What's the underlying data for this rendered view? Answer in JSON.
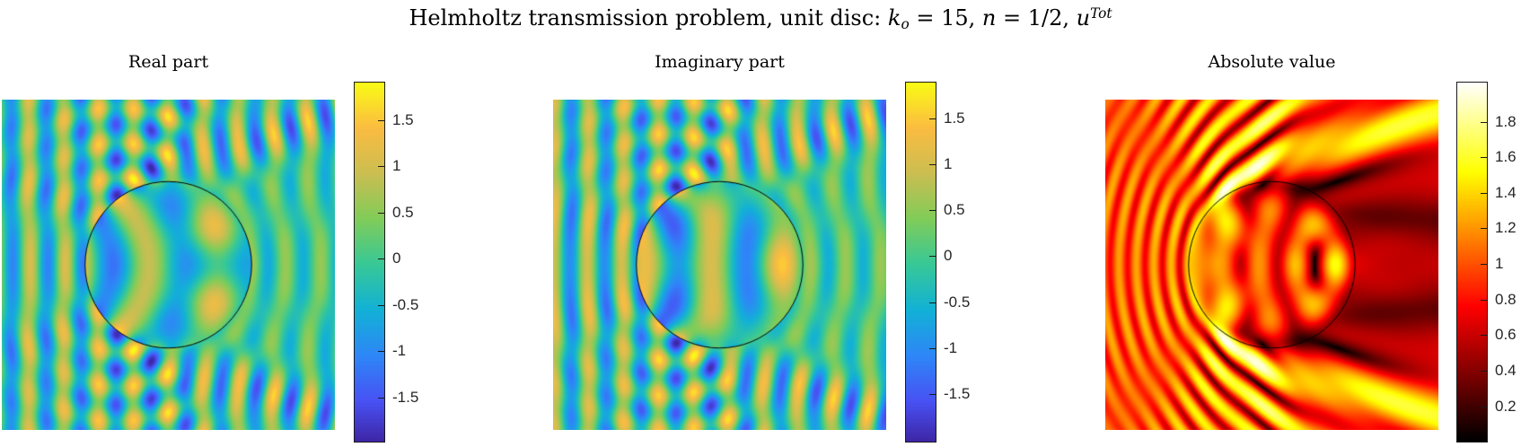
{
  "header": {
    "text1": "Helmholtz transmission problem, unit disc: ",
    "k": "k",
    "k_sub": "o",
    "mid1": " = 15, ",
    "n_sym": "n",
    "mid2": " = 1/2, ",
    "u_sym": "u",
    "u_sup": "Tot"
  },
  "model": {
    "k_outer": 15,
    "refractive_index": 0.5,
    "disc_radius": 1,
    "domain": [
      -2,
      2
    ],
    "incident_wave": "plane wave exp(i*k*x) traveling left to right"
  },
  "panels": [
    {
      "id": "real",
      "title": "Real part",
      "quantity": "Re(u^Tot)",
      "colormap": "parula",
      "colorbar_ticks": [
        1.5,
        1,
        0.5,
        0,
        -0.5,
        -1,
        -1.5
      ]
    },
    {
      "id": "imag",
      "title": "Imaginary part",
      "quantity": "Im(u^Tot)",
      "colormap": "parula",
      "colorbar_ticks": [
        1.5,
        1,
        0.5,
        0,
        -0.5,
        -1,
        -1.5
      ]
    },
    {
      "id": "abs",
      "title": "Absolute value",
      "quantity": "|u^Tot|",
      "colormap": "hot",
      "colorbar_ticks": [
        1.8,
        1.6,
        1.4,
        1.2,
        1,
        0.8,
        0.6,
        0.4,
        0.2
      ]
    }
  ],
  "colors": {
    "background": "#ffffff",
    "title_text": "#000000",
    "tick_text": "#262626",
    "colorbar_box": "#1a1a1a",
    "circle_outline": "#000000",
    "parula_stops": [
      [
        0,
        "#3E26A8"
      ],
      [
        0.111,
        "#4852F4"
      ],
      [
        0.238,
        "#2E87F7"
      ],
      [
        0.365,
        "#12B1D6"
      ],
      [
        0.492,
        "#37C897"
      ],
      [
        0.619,
        "#81CC59"
      ],
      [
        0.746,
        "#CBBE51"
      ],
      [
        0.873,
        "#FBBC41"
      ],
      [
        1,
        "#F9FB15"
      ]
    ],
    "hot_stops": [
      [
        0,
        "#000000"
      ],
      [
        0.375,
        "#FF0000"
      ],
      [
        0.75,
        "#FFFF00"
      ],
      [
        1,
        "#FFFFFF"
      ]
    ]
  },
  "chart_data": [
    {
      "type": "heatmap",
      "title": "Real part",
      "quantity": "Re(u_total)",
      "description": "Real part of total field for 2D Helmholtz transmission problem: incident plane wave exp(i*15*x) scattering off unit disc with refractive index n=1/2 (interior wavenumber 7.5)",
      "x_range": [
        -2,
        2
      ],
      "y_range": [
        -2,
        2
      ],
      "colormap": "parula",
      "color_range_approx": [
        -1.87,
        1.83
      ],
      "colorbar_ticks": [
        1.5,
        1,
        0.5,
        0,
        -0.5,
        -1,
        -1.5
      ],
      "overlay": "black unit-circle outline centered at origin",
      "wavelength_outside": 0.419,
      "wavelength_inside": 0.838,
      "grid": false,
      "legend": "colorbar right"
    },
    {
      "type": "heatmap",
      "title": "Imaginary part",
      "quantity": "Im(u_total)",
      "description": "Imaginary part of same total field (phase-shifted stripe pattern)",
      "x_range": [
        -2,
        2
      ],
      "y_range": [
        -2,
        2
      ],
      "colormap": "parula",
      "color_range_approx": [
        -1.87,
        1.83
      ],
      "colorbar_ticks": [
        1.5,
        1,
        0.5,
        0,
        -0.5,
        -1,
        -1.5
      ],
      "overlay": "black unit-circle outline centered at origin",
      "wavelength_outside": 0.419,
      "wavelength_inside": 0.838,
      "grid": false,
      "legend": "colorbar right"
    },
    {
      "type": "heatmap",
      "title": "Absolute value",
      "quantity": "abs(u_total)",
      "description": "Magnitude of total field: standing-wave arcs (period ~0.21) in front of disc on left, interior focal rings near right inside edge, dark shadow lanes and bright jets behind disc on right",
      "x_range": [
        -2,
        2
      ],
      "y_range": [
        -2,
        2
      ],
      "colormap": "hot",
      "color_range_approx": [
        0.05,
        1.91
      ],
      "colorbar_ticks": [
        1.8,
        1.6,
        1.4,
        1.2,
        1,
        0.8,
        0.6,
        0.4,
        0.2
      ],
      "overlay": "black unit-circle outline centered at origin",
      "grid": false,
      "legend": "colorbar right"
    }
  ]
}
